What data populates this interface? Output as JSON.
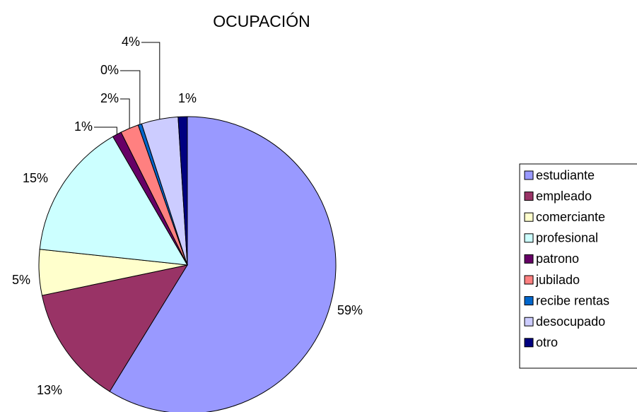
{
  "chart_data": {
    "type": "pie",
    "title": "OCUPACIÓN",
    "categories": [
      "estudiante",
      "empleado",
      "comerciante",
      "profesional",
      "patrono",
      "jubilado",
      "recibe rentas",
      "desocupado",
      "otro"
    ],
    "values": [
      59,
      13,
      5,
      15,
      1,
      2,
      0.4,
      4,
      1
    ],
    "value_labels": [
      "59%",
      "13%",
      "5%",
      "15%",
      "1%",
      "2%",
      "0%",
      "4%",
      "1%"
    ],
    "colors": [
      "#9999ff",
      "#993366",
      "#ffffcc",
      "#ccffff",
      "#660066",
      "#ff8080",
      "#0066cc",
      "#ccccff",
      "#000080"
    ],
    "legend": "right"
  }
}
